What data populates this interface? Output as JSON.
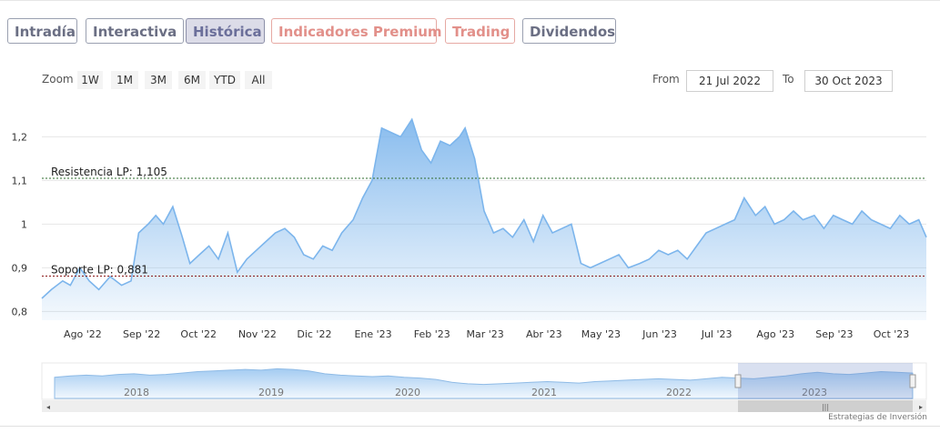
{
  "tabs": [
    "Intradía",
    "Interactiva",
    "Histórica",
    "Indicadores Premium",
    "Trading",
    "Dividendos"
  ],
  "active_tab": "Histórica",
  "zoom": {
    "label": "Zoom",
    "buttons": [
      "1W",
      "1M",
      "3M",
      "6M",
      "YTD",
      "All"
    ]
  },
  "range": {
    "from_label": "From",
    "from_value": "21 Jul 2022",
    "to_label": "To",
    "to_value": "30 Oct 2023"
  },
  "colors": {
    "series": "#7cb5ec",
    "resistance": "#2e6b2e",
    "support": "#8b1a1a",
    "navigator_mask": "#b8c4dc"
  },
  "chart_data": {
    "type": "area",
    "ylim": [
      0.78,
      1.28
    ],
    "yticks": [
      0.8,
      0.9,
      1.0,
      1.1,
      1.2
    ],
    "ytick_labels": [
      "0,8",
      "0,9",
      "1",
      "1,1",
      "1,2"
    ],
    "xlim": [
      "2022-07-21",
      "2023-10-30"
    ],
    "xticks": [
      {
        "date": "2022-08-01",
        "label": "Ago '22"
      },
      {
        "date": "2022-09-01",
        "label": "Sep '22"
      },
      {
        "date": "2022-10-01",
        "label": "Oct '22"
      },
      {
        "date": "2022-11-01",
        "label": "Nov '22"
      },
      {
        "date": "2022-12-01",
        "label": "Dic '22"
      },
      {
        "date": "2023-01-01",
        "label": "Ene '23"
      },
      {
        "date": "2023-02-01",
        "label": "Feb '23"
      },
      {
        "date": "2023-03-01",
        "label": "Mar '23"
      },
      {
        "date": "2023-04-01",
        "label": "Abr '23"
      },
      {
        "date": "2023-05-01",
        "label": "May '23"
      },
      {
        "date": "2023-06-01",
        "label": "Jun '23"
      },
      {
        "date": "2023-07-01",
        "label": "Jul '23"
      },
      {
        "date": "2023-08-01",
        "label": "Ago '23"
      },
      {
        "date": "2023-09-01",
        "label": "Sep '23"
      },
      {
        "date": "2023-10-01",
        "label": "Oct '23"
      }
    ],
    "series": [
      {
        "x": [
          "2022-07-21",
          "2022-07-26",
          "2022-08-01",
          "2022-08-05",
          "2022-08-10",
          "2022-08-15",
          "2022-08-20",
          "2022-08-26",
          "2022-09-01",
          "2022-09-06",
          "2022-09-10",
          "2022-09-15",
          "2022-09-19",
          "2022-09-23",
          "2022-09-28",
          "2022-10-03",
          "2022-10-07",
          "2022-10-12",
          "2022-10-17",
          "2022-10-22",
          "2022-10-27",
          "2022-11-01",
          "2022-11-06",
          "2022-11-11",
          "2022-11-16",
          "2022-11-21",
          "2022-11-26",
          "2022-12-01",
          "2022-12-06",
          "2022-12-11",
          "2022-12-16",
          "2022-12-21",
          "2022-12-26",
          "2023-01-01",
          "2023-01-06",
          "2023-01-11",
          "2023-01-16",
          "2023-01-21",
          "2023-01-26",
          "2023-02-01",
          "2023-02-06",
          "2023-02-11",
          "2023-02-16",
          "2023-02-21",
          "2023-02-26",
          "2023-03-01",
          "2023-03-06",
          "2023-03-11",
          "2023-03-16",
          "2023-03-21",
          "2023-03-26",
          "2023-04-01",
          "2023-04-06",
          "2023-04-11",
          "2023-04-16",
          "2023-04-21",
          "2023-04-26",
          "2023-05-01",
          "2023-05-06",
          "2023-05-11",
          "2023-05-16",
          "2023-05-21",
          "2023-05-26",
          "2023-06-01",
          "2023-06-06",
          "2023-06-11",
          "2023-06-16",
          "2023-06-21",
          "2023-06-26",
          "2023-07-01",
          "2023-07-06",
          "2023-07-11",
          "2023-07-16",
          "2023-07-21",
          "2023-07-26",
          "2023-08-01",
          "2023-08-06",
          "2023-08-11",
          "2023-08-16",
          "2023-08-21",
          "2023-08-26",
          "2023-09-01",
          "2023-09-06",
          "2023-09-11",
          "2023-09-16",
          "2023-09-21",
          "2023-09-26",
          "2023-10-01",
          "2023-10-06",
          "2023-10-11",
          "2023-10-16",
          "2023-10-21",
          "2023-10-26",
          "2023-10-30"
        ],
        "y": [
          0.83,
          0.85,
          0.87,
          0.86,
          0.9,
          0.87,
          0.85,
          0.88,
          0.86,
          0.87,
          0.98,
          1.0,
          1.02,
          1.0,
          1.04,
          0.97,
          0.91,
          0.93,
          0.95,
          0.92,
          0.98,
          0.89,
          0.92,
          0.94,
          0.96,
          0.98,
          0.99,
          0.97,
          0.93,
          0.92,
          0.95,
          0.94,
          0.98,
          1.01,
          1.06,
          1.1,
          1.22,
          1.21,
          1.2,
          1.24,
          1.17,
          1.14,
          1.19,
          1.18,
          1.2,
          1.22,
          1.15,
          1.03,
          0.98,
          0.99,
          0.97,
          1.01,
          0.96,
          1.02,
          0.98,
          0.99,
          1.0,
          0.91,
          0.9,
          0.91,
          0.92,
          0.93,
          0.9,
          0.91,
          0.92,
          0.94,
          0.93,
          0.94,
          0.92,
          0.95,
          0.98,
          0.99,
          1.0,
          1.01,
          1.06,
          1.02,
          1.04,
          1.0,
          1.01,
          1.03,
          1.01,
          1.02,
          0.99,
          1.02,
          1.01,
          1.0,
          1.03,
          1.01,
          1.0,
          0.99,
          1.02,
          1.0,
          1.01,
          0.97
        ]
      }
    ],
    "lines": [
      {
        "label": "Resistencia LP: 1,105",
        "value": 1.105
      },
      {
        "label": "Soporte LP: 0,881",
        "value": 0.881
      }
    ],
    "navigator": {
      "years": [
        "2018",
        "2019",
        "2020",
        "2021",
        "2022",
        "2023"
      ],
      "values": [
        0.93,
        0.95,
        0.96,
        0.95,
        0.97,
        0.98,
        0.96,
        0.97,
        0.99,
        1.01,
        1.02,
        1.03,
        1.04,
        1.03,
        1.05,
        1.04,
        1.02,
        0.98,
        0.96,
        0.95,
        0.94,
        0.95,
        0.93,
        0.92,
        0.9,
        0.86,
        0.84,
        0.83,
        0.84,
        0.85,
        0.86,
        0.87,
        0.86,
        0.85,
        0.87,
        0.88,
        0.89,
        0.9,
        0.91,
        0.9,
        0.89,
        0.91,
        0.93,
        0.92,
        0.91,
        0.93,
        0.95,
        0.98,
        1.0,
        0.98,
        0.97,
        0.99,
        1.01,
        1.0,
        0.99
      ]
    }
  },
  "footer": "Estrategias de Inversión"
}
